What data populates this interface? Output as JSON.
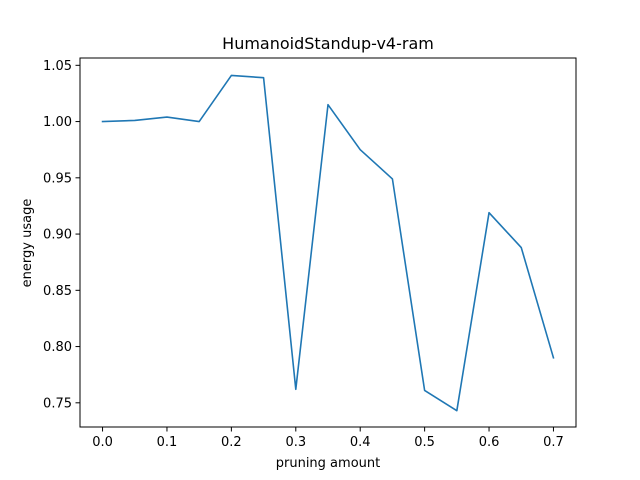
{
  "chart_data": {
    "type": "line",
    "title": "HumanoidStandup-v4-ram",
    "xlabel": "pruning amount",
    "ylabel": "energy usage",
    "xlim": [
      -0.035,
      0.735
    ],
    "ylim": [
      0.7285,
      1.0565
    ],
    "xticks": [
      0.0,
      0.1,
      0.2,
      0.3,
      0.4,
      0.5,
      0.6,
      0.7
    ],
    "xtick_labels": [
      "0.0",
      "0.1",
      "0.2",
      "0.3",
      "0.4",
      "0.5",
      "0.6",
      "0.7"
    ],
    "yticks": [
      0.75,
      0.8,
      0.85,
      0.9,
      0.95,
      1.0,
      1.05
    ],
    "ytick_labels": [
      "0.75",
      "0.80",
      "0.85",
      "0.90",
      "0.95",
      "1.00",
      "1.05"
    ],
    "grid": false,
    "series": [
      {
        "color": "#1f77b4",
        "x": [
          0.0,
          0.05,
          0.1,
          0.15,
          0.2,
          0.25,
          0.3,
          0.35,
          0.4,
          0.45,
          0.5,
          0.55,
          0.6,
          0.65,
          0.7
        ],
        "y": [
          1.0,
          1.001,
          1.004,
          1.0,
          1.041,
          1.039,
          0.762,
          1.015,
          0.975,
          0.949,
          0.761,
          0.743,
          0.919,
          0.888,
          0.79
        ]
      }
    ]
  }
}
